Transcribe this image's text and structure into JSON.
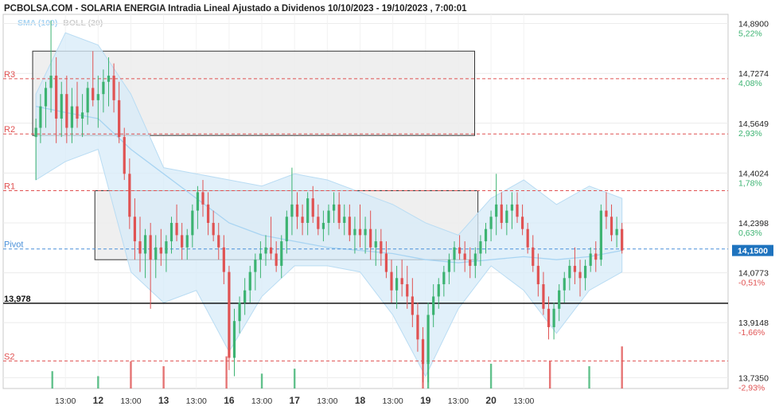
{
  "header": {
    "title": "PCBOLSA.COM - SOLARIA ENERGIA Intradia Lineal Ajustado a Dividenos 10/10/2023 - 19/10/2023 , 7:00:01",
    "legend_sma": "SMA (100)",
    "legend_boll": "BOLL (20)"
  },
  "colors": {
    "up": "#3cb371",
    "down": "#e05252",
    "sma": "#a8d4f2",
    "boll_fill": "#d7ebf8",
    "zone_fill": "#ececec",
    "resistance": "#e05252",
    "pivot": "#4a90d9",
    "support_line": "#000000"
  },
  "chart_data": {
    "type": "candlestick",
    "title": "SOLARIA ENERGIA Intradia Lineal Ajustado a Dividenos",
    "x_ticks": [
      "13:00",
      "12",
      "13:00",
      "13",
      "13:00",
      "16",
      "13:00",
      "17",
      "13:00",
      "18",
      "13:00",
      "19",
      "13:00",
      "20",
      "13:00"
    ],
    "y_ticks": [
      {
        "value": 14.89,
        "label": "14,8900",
        "pct": "5,22%"
      },
      {
        "value": 14.7274,
        "label": "14,7274",
        "pct": "4,08%"
      },
      {
        "value": 14.5649,
        "label": "14,5649",
        "pct": "2,93%"
      },
      {
        "value": 14.4024,
        "label": "14,4024",
        "pct": "1,78%"
      },
      {
        "value": 14.2398,
        "label": "14,2398",
        "pct": "0,63%"
      },
      {
        "value": 14.0773,
        "label": "14,0773",
        "pct": "-0,51%"
      },
      {
        "value": 13.9148,
        "label": "13,9148",
        "pct": "-1,66%"
      },
      {
        "value": 13.735,
        "label": "13,7350",
        "pct": "-2,93%"
      }
    ],
    "ylim": [
      13.7,
      14.92
    ],
    "last_price": {
      "value": 14.15,
      "label": "14,1500"
    },
    "levels": [
      {
        "name": "R3",
        "value": 14.71,
        "kind": "resistance"
      },
      {
        "name": "R2",
        "value": 14.53,
        "kind": "resistance"
      },
      {
        "name": "R1",
        "value": 14.345,
        "kind": "resistance"
      },
      {
        "name": "Pivot",
        "value": 14.155,
        "kind": "pivot"
      },
      {
        "name": "13,978",
        "value": 13.978,
        "kind": "support_line"
      },
      {
        "name": "S2",
        "value": 13.79,
        "kind": "resistance"
      }
    ],
    "zones": [
      {
        "from": 14.525,
        "to": 14.8,
        "start_day": 10.0,
        "end_day": 16.75
      },
      {
        "from": 14.12,
        "to": 14.345,
        "start_day": 10.95,
        "end_day": 16.8
      }
    ],
    "candles": [
      {
        "day": 10.05,
        "o": 14.52,
        "h": 14.58,
        "l": 14.38,
        "c": 14.55
      },
      {
        "day": 10.12,
        "o": 14.55,
        "h": 14.66,
        "l": 14.5,
        "c": 14.62
      },
      {
        "day": 10.2,
        "o": 14.62,
        "h": 14.7,
        "l": 14.55,
        "c": 14.68
      },
      {
        "day": 10.28,
        "o": 14.68,
        "h": 14.9,
        "l": 14.6,
        "c": 14.72
      },
      {
        "day": 10.36,
        "o": 14.72,
        "h": 14.78,
        "l": 14.5,
        "c": 14.58
      },
      {
        "day": 10.44,
        "o": 14.58,
        "h": 14.7,
        "l": 14.52,
        "c": 14.66
      },
      {
        "day": 10.52,
        "o": 14.66,
        "h": 14.72,
        "l": 14.5,
        "c": 14.55
      },
      {
        "day": 10.6,
        "o": 14.55,
        "h": 14.68,
        "l": 14.5,
        "c": 14.62
      },
      {
        "day": 10.68,
        "o": 14.62,
        "h": 14.7,
        "l": 14.55,
        "c": 14.58
      },
      {
        "day": 10.76,
        "o": 14.58,
        "h": 14.66,
        "l": 14.52,
        "c": 14.6
      },
      {
        "day": 10.84,
        "o": 14.6,
        "h": 14.7,
        "l": 14.56,
        "c": 14.68
      },
      {
        "day": 10.92,
        "o": 14.68,
        "h": 14.8,
        "l": 14.62,
        "c": 14.64
      },
      {
        "day": 11.0,
        "o": 14.64,
        "h": 14.72,
        "l": 14.55,
        "c": 14.66
      },
      {
        "day": 11.08,
        "o": 14.66,
        "h": 14.74,
        "l": 14.6,
        "c": 14.7
      },
      {
        "day": 11.16,
        "o": 14.7,
        "h": 14.78,
        "l": 14.62,
        "c": 14.72
      },
      {
        "day": 11.24,
        "o": 14.72,
        "h": 14.76,
        "l": 14.6,
        "c": 14.64
      },
      {
        "day": 11.32,
        "o": 14.64,
        "h": 14.7,
        "l": 14.5,
        "c": 14.52
      },
      {
        "day": 11.4,
        "o": 14.52,
        "h": 14.55,
        "l": 14.38,
        "c": 14.4
      },
      {
        "day": 11.48,
        "o": 14.4,
        "h": 14.45,
        "l": 14.22,
        "c": 14.26
      },
      {
        "day": 11.56,
        "o": 14.26,
        "h": 14.32,
        "l": 14.12,
        "c": 14.18
      },
      {
        "day": 11.64,
        "o": 14.18,
        "h": 14.26,
        "l": 14.08,
        "c": 14.14
      },
      {
        "day": 11.72,
        "o": 14.14,
        "h": 14.22,
        "l": 14.06,
        "c": 14.2
      },
      {
        "day": 11.8,
        "o": 14.2,
        "h": 14.24,
        "l": 13.96,
        "c": 14.12
      },
      {
        "day": 11.88,
        "o": 14.12,
        "h": 14.2,
        "l": 14.06,
        "c": 14.16
      },
      {
        "day": 11.96,
        "o": 14.16,
        "h": 14.22,
        "l": 14.1,
        "c": 14.14
      },
      {
        "day": 12.04,
        "o": 14.14,
        "h": 14.2,
        "l": 14.08,
        "c": 14.18
      },
      {
        "day": 12.12,
        "o": 14.18,
        "h": 14.26,
        "l": 14.14,
        "c": 14.24
      },
      {
        "day": 12.2,
        "o": 14.24,
        "h": 14.3,
        "l": 14.18,
        "c": 14.2
      },
      {
        "day": 12.28,
        "o": 14.2,
        "h": 14.24,
        "l": 14.12,
        "c": 14.16
      },
      {
        "day": 12.36,
        "o": 14.16,
        "h": 14.22,
        "l": 14.12,
        "c": 14.2
      },
      {
        "day": 12.44,
        "o": 14.2,
        "h": 14.3,
        "l": 14.16,
        "c": 14.28
      },
      {
        "day": 12.52,
        "o": 14.28,
        "h": 14.36,
        "l": 14.22,
        "c": 14.34
      },
      {
        "day": 12.6,
        "o": 14.34,
        "h": 14.38,
        "l": 14.26,
        "c": 14.3
      },
      {
        "day": 12.68,
        "o": 14.3,
        "h": 14.34,
        "l": 14.2,
        "c": 14.24
      },
      {
        "day": 12.76,
        "o": 14.24,
        "h": 14.28,
        "l": 14.18,
        "c": 14.2
      },
      {
        "day": 12.84,
        "o": 14.2,
        "h": 14.24,
        "l": 14.12,
        "c": 14.16
      },
      {
        "day": 12.92,
        "o": 14.16,
        "h": 14.2,
        "l": 14.04,
        "c": 14.08
      },
      {
        "day": 13.0,
        "o": 14.08,
        "h": 14.1,
        "l": 13.76,
        "c": 13.8
      },
      {
        "day": 13.08,
        "o": 13.8,
        "h": 13.96,
        "l": 13.74,
        "c": 13.92
      },
      {
        "day": 13.16,
        "o": 13.92,
        "h": 14.0,
        "l": 13.88,
        "c": 13.98
      },
      {
        "day": 13.24,
        "o": 13.98,
        "h": 14.06,
        "l": 13.94,
        "c": 14.02
      },
      {
        "day": 13.32,
        "o": 14.02,
        "h": 14.1,
        "l": 13.98,
        "c": 14.08
      },
      {
        "day": 13.4,
        "o": 14.08,
        "h": 14.14,
        "l": 14.02,
        "c": 14.12
      },
      {
        "day": 13.48,
        "o": 14.12,
        "h": 14.18,
        "l": 14.06,
        "c": 14.14
      },
      {
        "day": 13.56,
        "o": 14.14,
        "h": 14.2,
        "l": 14.1,
        "c": 14.16
      },
      {
        "day": 13.64,
        "o": 14.16,
        "h": 14.26,
        "l": 14.12,
        "c": 14.14
      },
      {
        "day": 13.72,
        "o": 14.14,
        "h": 14.18,
        "l": 14.08,
        "c": 14.1
      },
      {
        "day": 13.8,
        "o": 14.1,
        "h": 14.2,
        "l": 14.06,
        "c": 14.18
      },
      {
        "day": 13.88,
        "o": 14.18,
        "h": 14.28,
        "l": 14.14,
        "c": 14.26
      },
      {
        "day": 13.96,
        "o": 14.26,
        "h": 14.42,
        "l": 14.2,
        "c": 14.3
      },
      {
        "day": 14.04,
        "o": 14.3,
        "h": 14.34,
        "l": 14.22,
        "c": 14.26
      },
      {
        "day": 14.12,
        "o": 14.26,
        "h": 14.3,
        "l": 14.2,
        "c": 14.24
      },
      {
        "day": 14.2,
        "o": 14.24,
        "h": 14.34,
        "l": 14.2,
        "c": 14.32
      },
      {
        "day": 14.28,
        "o": 14.32,
        "h": 14.36,
        "l": 14.24,
        "c": 14.26
      },
      {
        "day": 14.36,
        "o": 14.26,
        "h": 14.3,
        "l": 14.2,
        "c": 14.22
      },
      {
        "day": 14.44,
        "o": 14.22,
        "h": 14.28,
        "l": 14.18,
        "c": 14.24
      },
      {
        "day": 14.52,
        "o": 14.24,
        "h": 14.3,
        "l": 14.2,
        "c": 14.28
      },
      {
        "day": 14.6,
        "o": 14.28,
        "h": 14.34,
        "l": 14.24,
        "c": 14.3
      },
      {
        "day": 14.68,
        "o": 14.3,
        "h": 14.34,
        "l": 14.22,
        "c": 14.24
      },
      {
        "day": 14.76,
        "o": 14.24,
        "h": 14.3,
        "l": 14.2,
        "c": 14.26
      },
      {
        "day": 14.84,
        "o": 14.26,
        "h": 14.3,
        "l": 14.18,
        "c": 14.2
      },
      {
        "day": 14.92,
        "o": 14.2,
        "h": 14.26,
        "l": 14.14,
        "c": 14.22
      },
      {
        "day": 15.0,
        "o": 14.22,
        "h": 14.3,
        "l": 14.16,
        "c": 14.2
      },
      {
        "day": 15.08,
        "o": 14.2,
        "h": 14.26,
        "l": 14.14,
        "c": 14.22
      },
      {
        "day": 15.16,
        "o": 14.22,
        "h": 14.28,
        "l": 14.12,
        "c": 14.16
      },
      {
        "day": 15.24,
        "o": 14.16,
        "h": 14.22,
        "l": 14.1,
        "c": 14.18
      },
      {
        "day": 15.32,
        "o": 14.18,
        "h": 14.22,
        "l": 14.1,
        "c": 14.14
      },
      {
        "day": 15.4,
        "o": 14.14,
        "h": 14.18,
        "l": 14.06,
        "c": 14.08
      },
      {
        "day": 15.48,
        "o": 14.08,
        "h": 14.12,
        "l": 13.98,
        "c": 14.02
      },
      {
        "day": 15.56,
        "o": 14.02,
        "h": 14.1,
        "l": 13.96,
        "c": 14.06
      },
      {
        "day": 15.64,
        "o": 14.06,
        "h": 14.12,
        "l": 14.0,
        "c": 14.04
      },
      {
        "day": 15.72,
        "o": 14.04,
        "h": 14.1,
        "l": 13.96,
        "c": 14.0
      },
      {
        "day": 15.8,
        "o": 14.0,
        "h": 14.06,
        "l": 13.9,
        "c": 13.94
      },
      {
        "day": 15.88,
        "o": 13.94,
        "h": 13.98,
        "l": 13.82,
        "c": 13.86
      },
      {
        "day": 15.96,
        "o": 13.86,
        "h": 13.9,
        "l": 13.72,
        "c": 13.78
      },
      {
        "day": 16.04,
        "o": 13.78,
        "h": 13.98,
        "l": 13.72,
        "c": 13.94
      },
      {
        "day": 16.12,
        "o": 13.94,
        "h": 14.04,
        "l": 13.9,
        "c": 14.0
      },
      {
        "day": 16.2,
        "o": 14.0,
        "h": 14.06,
        "l": 13.96,
        "c": 14.04
      },
      {
        "day": 16.28,
        "o": 14.04,
        "h": 14.1,
        "l": 14.0,
        "c": 14.08
      },
      {
        "day": 16.36,
        "o": 14.08,
        "h": 14.14,
        "l": 14.04,
        "c": 14.12
      },
      {
        "day": 16.44,
        "o": 14.12,
        "h": 14.18,
        "l": 14.08,
        "c": 14.16
      },
      {
        "day": 16.52,
        "o": 14.16,
        "h": 14.2,
        "l": 14.12,
        "c": 14.14
      },
      {
        "day": 16.6,
        "o": 14.14,
        "h": 14.18,
        "l": 14.08,
        "c": 14.12
      },
      {
        "day": 16.68,
        "o": 14.12,
        "h": 14.16,
        "l": 14.06,
        "c": 14.1
      },
      {
        "day": 16.76,
        "o": 14.1,
        "h": 14.16,
        "l": 14.06,
        "c": 14.14
      },
      {
        "day": 16.84,
        "o": 14.14,
        "h": 14.2,
        "l": 14.1,
        "c": 14.18
      },
      {
        "day": 16.92,
        "o": 14.18,
        "h": 14.24,
        "l": 14.14,
        "c": 14.22
      },
      {
        "day": 17.0,
        "o": 14.22,
        "h": 14.28,
        "l": 14.18,
        "c": 14.26
      },
      {
        "day": 17.08,
        "o": 14.26,
        "h": 14.4,
        "l": 14.2,
        "c": 14.3
      },
      {
        "day": 17.16,
        "o": 14.3,
        "h": 14.34,
        "l": 14.22,
        "c": 14.24
      },
      {
        "day": 17.24,
        "o": 14.24,
        "h": 14.3,
        "l": 14.2,
        "c": 14.28
      },
      {
        "day": 17.32,
        "o": 14.28,
        "h": 14.34,
        "l": 14.22,
        "c": 14.3
      },
      {
        "day": 17.4,
        "o": 14.3,
        "h": 14.34,
        "l": 14.24,
        "c": 14.26
      },
      {
        "day": 17.48,
        "o": 14.26,
        "h": 14.3,
        "l": 14.2,
        "c": 14.22
      },
      {
        "day": 17.56,
        "o": 14.22,
        "h": 14.24,
        "l": 14.14,
        "c": 14.16
      },
      {
        "day": 17.64,
        "o": 14.16,
        "h": 14.2,
        "l": 14.08,
        "c": 14.1
      },
      {
        "day": 17.72,
        "o": 14.1,
        "h": 14.14,
        "l": 14.0,
        "c": 14.04
      },
      {
        "day": 17.8,
        "o": 14.04,
        "h": 14.08,
        "l": 13.94,
        "c": 13.96
      },
      {
        "day": 17.88,
        "o": 13.96,
        "h": 14.0,
        "l": 13.86,
        "c": 13.9
      },
      {
        "day": 17.96,
        "o": 13.9,
        "h": 13.98,
        "l": 13.86,
        "c": 13.96
      },
      {
        "day": 18.04,
        "o": 13.96,
        "h": 14.04,
        "l": 13.92,
        "c": 14.02
      },
      {
        "day": 18.12,
        "o": 14.02,
        "h": 14.08,
        "l": 13.98,
        "c": 14.06
      },
      {
        "day": 18.2,
        "o": 14.06,
        "h": 14.12,
        "l": 14.02,
        "c": 14.1
      },
      {
        "day": 18.28,
        "o": 14.1,
        "h": 14.16,
        "l": 14.04,
        "c": 14.08
      },
      {
        "day": 18.36,
        "o": 14.08,
        "h": 14.12,
        "l": 14.0,
        "c": 14.06
      },
      {
        "day": 18.44,
        "o": 14.06,
        "h": 14.12,
        "l": 14.02,
        "c": 14.1
      },
      {
        "day": 18.52,
        "o": 14.1,
        "h": 14.16,
        "l": 14.08,
        "c": 14.14
      },
      {
        "day": 18.6,
        "o": 14.14,
        "h": 14.18,
        "l": 14.08,
        "c": 14.12
      },
      {
        "day": 18.68,
        "o": 14.12,
        "h": 14.3,
        "l": 14.1,
        "c": 14.28
      },
      {
        "day": 18.76,
        "o": 14.28,
        "h": 14.34,
        "l": 14.22,
        "c": 14.26
      },
      {
        "day": 18.84,
        "o": 14.26,
        "h": 14.3,
        "l": 14.18,
        "c": 14.2
      },
      {
        "day": 18.92,
        "o": 14.2,
        "h": 14.26,
        "l": 14.16,
        "c": 14.22
      },
      {
        "day": 19.0,
        "o": 14.22,
        "h": 14.24,
        "l": 14.14,
        "c": 14.15
      }
    ],
    "sma100": [
      [
        10.05,
        14.62
      ],
      [
        10.5,
        14.6
      ],
      [
        11.0,
        14.58
      ],
      [
        11.5,
        14.48
      ],
      [
        12.0,
        14.4
      ],
      [
        12.5,
        14.32
      ],
      [
        13.0,
        14.24
      ],
      [
        13.5,
        14.2
      ],
      [
        14.0,
        14.18
      ],
      [
        14.5,
        14.16
      ],
      [
        15.0,
        14.15
      ],
      [
        15.5,
        14.14
      ],
      [
        16.0,
        14.12
      ],
      [
        16.5,
        14.11
      ],
      [
        17.0,
        14.12
      ],
      [
        17.5,
        14.13
      ],
      [
        18.0,
        14.12
      ],
      [
        18.5,
        14.13
      ],
      [
        19.0,
        14.15
      ]
    ],
    "bollinger": {
      "upper": [
        [
          10.05,
          14.66
        ],
        [
          10.5,
          14.86
        ],
        [
          11.0,
          14.82
        ],
        [
          11.5,
          14.66
        ],
        [
          12.0,
          14.42
        ],
        [
          12.5,
          14.4
        ],
        [
          13.0,
          14.38
        ],
        [
          13.5,
          14.36
        ],
        [
          14.0,
          14.4
        ],
        [
          14.5,
          14.38
        ],
        [
          15.0,
          14.34
        ],
        [
          15.5,
          14.3
        ],
        [
          16.0,
          14.24
        ],
        [
          16.5,
          14.2
        ],
        [
          17.0,
          14.32
        ],
        [
          17.5,
          14.38
        ],
        [
          18.0,
          14.3
        ],
        [
          18.5,
          14.36
        ],
        [
          19.0,
          14.32
        ]
      ],
      "lower": [
        [
          10.05,
          14.38
        ],
        [
          10.5,
          14.44
        ],
        [
          11.0,
          14.48
        ],
        [
          11.5,
          14.08
        ],
        [
          12.0,
          13.98
        ],
        [
          12.5,
          14.02
        ],
        [
          13.0,
          13.82
        ],
        [
          13.5,
          14.0
        ],
        [
          14.0,
          14.1
        ],
        [
          14.5,
          14.1
        ],
        [
          15.0,
          14.08
        ],
        [
          15.5,
          13.94
        ],
        [
          16.0,
          13.74
        ],
        [
          16.5,
          13.96
        ],
        [
          17.0,
          14.1
        ],
        [
          17.5,
          14.02
        ],
        [
          18.0,
          13.88
        ],
        [
          18.5,
          14.02
        ],
        [
          19.0,
          14.08
        ]
      ]
    },
    "volume": [
      {
        "day": 10.3,
        "v": 14,
        "up": true
      },
      {
        "day": 11.0,
        "v": 10,
        "up": true
      },
      {
        "day": 11.5,
        "v": 22,
        "up": false
      },
      {
        "day": 12.0,
        "v": 18,
        "up": false
      },
      {
        "day": 12.96,
        "v": 26,
        "up": false
      },
      {
        "day": 13.5,
        "v": 12,
        "up": true
      },
      {
        "day": 14.0,
        "v": 16,
        "up": true
      },
      {
        "day": 15.96,
        "v": 40,
        "up": false
      },
      {
        "day": 16.04,
        "v": 32,
        "up": true
      },
      {
        "day": 17.0,
        "v": 20,
        "up": true
      },
      {
        "day": 17.9,
        "v": 22,
        "up": false
      },
      {
        "day": 18.5,
        "v": 18,
        "up": true
      },
      {
        "day": 19.0,
        "v": 34,
        "up": false
      }
    ]
  }
}
